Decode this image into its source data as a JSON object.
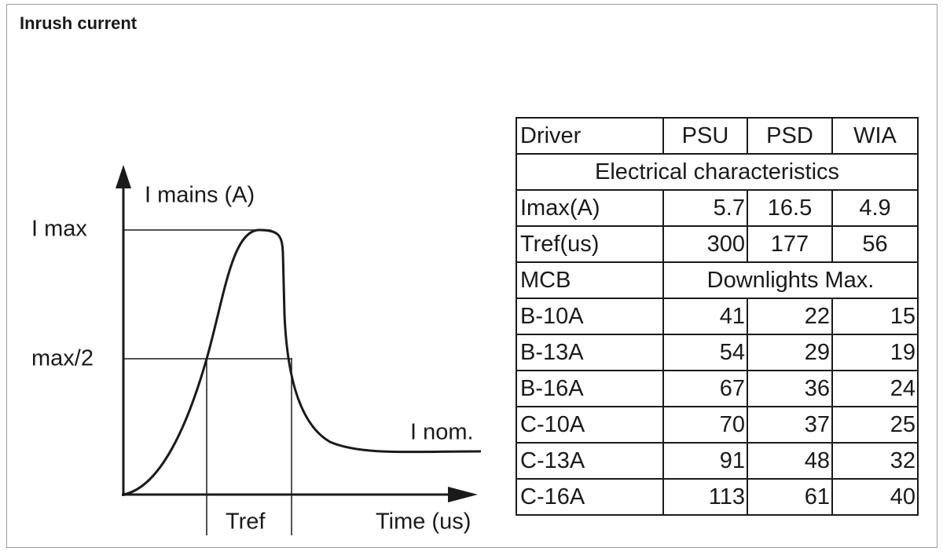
{
  "title": "Inrush current",
  "diagram": {
    "y_axis_label": "I mains (A)",
    "i_max": "I max",
    "half_max": "max/2",
    "i_nom": "I nom.",
    "tref": "Tref",
    "x_axis_label": "Time (us)"
  },
  "table": {
    "header": [
      "Driver",
      "PSU",
      "PSD",
      "WIA"
    ],
    "section_1": "Electrical characteristics",
    "electrical_rows": [
      [
        "Imax(A)",
        5.7,
        16.5,
        4.9
      ],
      [
        "Tref(us)",
        300,
        177,
        56
      ]
    ],
    "section_2_label": "MCB",
    "section_2": "Downlights Max.",
    "mcb_rows": [
      [
        "B-10A",
        41,
        22,
        15
      ],
      [
        "B-13A",
        54,
        29,
        19
      ],
      [
        "B-16A",
        67,
        36,
        24
      ],
      [
        "C-10A",
        70,
        37,
        25
      ],
      [
        "C-13A",
        91,
        48,
        32
      ],
      [
        "C-16A",
        113,
        61,
        40
      ]
    ]
  }
}
